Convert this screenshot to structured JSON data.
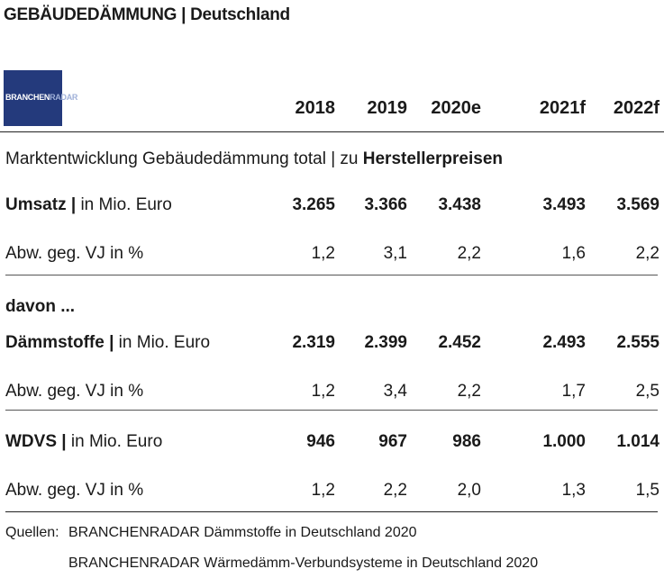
{
  "title": "GEBÄUDEDÄMMUNG | Deutschland",
  "logo": {
    "text_main": "BRANCHEN",
    "text_accent": "RADAR"
  },
  "chart_data": {
    "type": "table",
    "columns": [
      "2018",
      "2019",
      "2020e",
      "2021f",
      "2022f"
    ],
    "section_title": {
      "text": "Marktentwicklung Gebäudedämmung total | zu ",
      "bold": "Herstellerpreisen"
    },
    "subheading": "davon ...",
    "rows": [
      {
        "label_bold": "Umsatz |",
        "label_rest": " in Mio. Euro",
        "values": [
          "3.265",
          "3.366",
          "3.438",
          "3.493",
          "3.569"
        ],
        "bold": true
      },
      {
        "label_bold": "",
        "label_rest": "Abw. geg. VJ in %",
        "values": [
          "1,2",
          "3,1",
          "2,2",
          "1,6",
          "2,2"
        ],
        "bold": false
      },
      {
        "label_bold": "Dämmstoffe |",
        "label_rest": " in Mio. Euro",
        "values": [
          "2.319",
          "2.399",
          "2.452",
          "2.493",
          "2.555"
        ],
        "bold": true
      },
      {
        "label_bold": "",
        "label_rest": "Abw. geg. VJ in %",
        "values": [
          "1,2",
          "3,4",
          "2,2",
          "1,7",
          "2,5"
        ],
        "bold": false
      },
      {
        "label_bold": "WDVS |",
        "label_rest": " in Mio. Euro",
        "values": [
          "946",
          "967",
          "986",
          "1.000",
          "1.014"
        ],
        "bold": true
      },
      {
        "label_bold": "",
        "label_rest": "Abw. geg. VJ in %",
        "values": [
          "1,2",
          "2,2",
          "2,0",
          "1,3",
          "1,5"
        ],
        "bold": false
      }
    ]
  },
  "sources": {
    "label": "Quellen:",
    "lines": [
      "BRANCHENRADAR Dämmstoffe in Deutschland 2020",
      "BRANCHENRADAR Wärmedämm-Verbundsysteme in Deutschland 2020"
    ]
  }
}
